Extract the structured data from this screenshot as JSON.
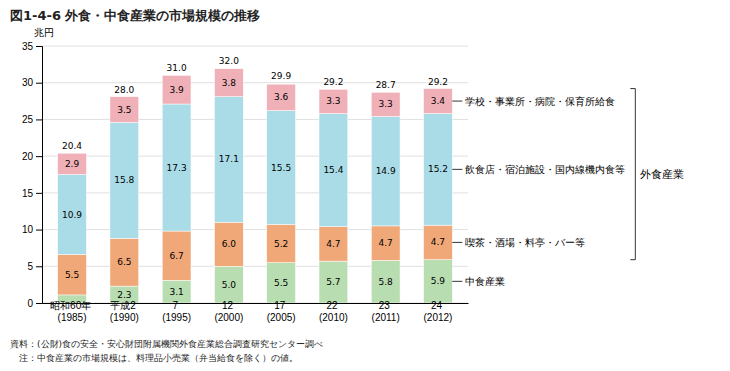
{
  "chart_data": {
    "type": "bar",
    "stacked": true,
    "title": "図1-4-6 外食・中食産業の市場規模の推移",
    "ylabel": "兆円",
    "categories": [
      "昭和60年 (1985)",
      "平成2 (1990)",
      "7 (1995)",
      "12 (2000)",
      "17 (2005)",
      "22 (2010)",
      "23 (2011)",
      "24 (2012)"
    ],
    "series": [
      {
        "name": "中食産業",
        "color": "#b8ddb0",
        "values": [
          1.1,
          2.3,
          3.1,
          5.0,
          5.5,
          5.7,
          5.8,
          5.9
        ],
        "value_labels": [
          null,
          "2.3",
          "3.1",
          "5.0",
          "5.5",
          "5.7",
          "5.8",
          "5.9"
        ]
      },
      {
        "name": "喫茶・酒場・料亭・バー等",
        "color": "#f0a878",
        "values": [
          5.5,
          6.5,
          6.7,
          6.0,
          5.2,
          4.7,
          4.7,
          4.7
        ],
        "value_labels": [
          "5.5",
          "6.5",
          "6.7",
          "6.0",
          "5.2",
          "4.7",
          "4.7",
          "4.7"
        ]
      },
      {
        "name": "飲食店・宿泊施設・国内線機内食等",
        "color": "#aadce8",
        "values": [
          10.9,
          15.8,
          17.3,
          17.1,
          15.5,
          15.4,
          14.9,
          15.2
        ],
        "value_labels": [
          "10.9",
          "15.8",
          "17.3",
          "17.1",
          "15.5",
          "15.4",
          "14.9",
          "15.2"
        ]
      },
      {
        "name": "学校・事業所・病院・保育所給食",
        "color": "#f0b0b8",
        "values": [
          2.9,
          3.5,
          3.9,
          3.8,
          3.6,
          3.3,
          3.3,
          3.4
        ],
        "value_labels": [
          "2.9",
          "3.5",
          "3.9",
          "3.8",
          "3.6",
          "3.3",
          "3.3",
          "3.4"
        ]
      }
    ],
    "totals": {
      "values": [
        20.4,
        28.0,
        31.0,
        32.0,
        29.9,
        29.2,
        28.7,
        29.2
      ],
      "value_labels": [
        "20.4",
        "28.0",
        "31.0",
        "32.0",
        "29.9",
        "29.2",
        "28.7",
        "29.2"
      ]
    },
    "data_labels": true,
    "ylim": [
      0,
      35
    ],
    "yticks": [
      0,
      5,
      10,
      15,
      20,
      25,
      30,
      35
    ],
    "grid": true,
    "annotations": [
      "外食産業"
    ],
    "notes": [
      "資料：(公財)食の安全・安心財団附属機関外食産業総合調査研究センター調べ",
      "　注：中食産業の市場規模は、料理品小売業（弁当給食を除く）の値。"
    ]
  }
}
